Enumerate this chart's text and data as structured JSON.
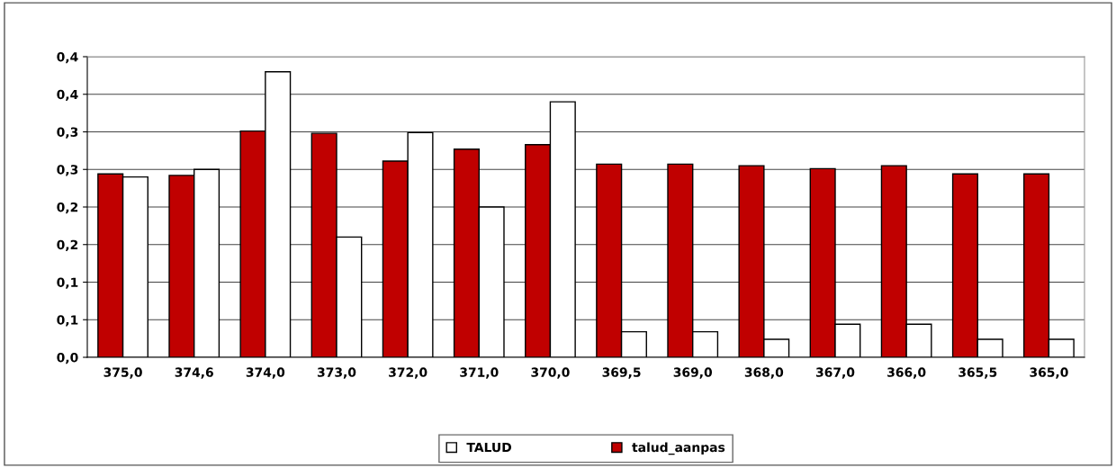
{
  "chart_data": {
    "type": "bar",
    "categories": [
      "375,0",
      "374,6",
      "374,0",
      "373,0",
      "372,0",
      "371,0",
      "370,0",
      "369,5",
      "369,0",
      "368,0",
      "367,0",
      "366,0",
      "365,5",
      "365,0"
    ],
    "series": [
      {
        "name": "talud_aanpas",
        "color": "#c00000",
        "values": [
          0.244,
          0.242,
          0.301,
          0.298,
          0.261,
          0.277,
          0.283,
          0.257,
          0.257,
          0.255,
          0.251,
          0.255,
          0.244,
          0.244
        ]
      },
      {
        "name": "TALUD",
        "color": "#ffffff",
        "values": [
          0.24,
          0.25,
          0.38,
          0.16,
          0.299,
          0.2,
          0.34,
          0.034,
          0.034,
          0.024,
          0.044,
          0.044,
          0.024,
          0.024
        ]
      }
    ],
    "ylim": [
      0,
      0.4
    ],
    "yticks": [
      {
        "value": 0,
        "label": "0,0"
      },
      {
        "value": 0.05,
        "label": "0,1"
      },
      {
        "value": 0.1,
        "label": "0,1"
      },
      {
        "value": 0.15,
        "label": "0,2"
      },
      {
        "value": 0.2,
        "label": "0,2"
      },
      {
        "value": 0.25,
        "label": "0,3"
      },
      {
        "value": 0.3,
        "label": "0,3"
      },
      {
        "value": 0.35,
        "label": "0,4"
      },
      {
        "value": 0.4,
        "label": "0,4"
      }
    ],
    "grid": "y",
    "legend": "bottom"
  }
}
